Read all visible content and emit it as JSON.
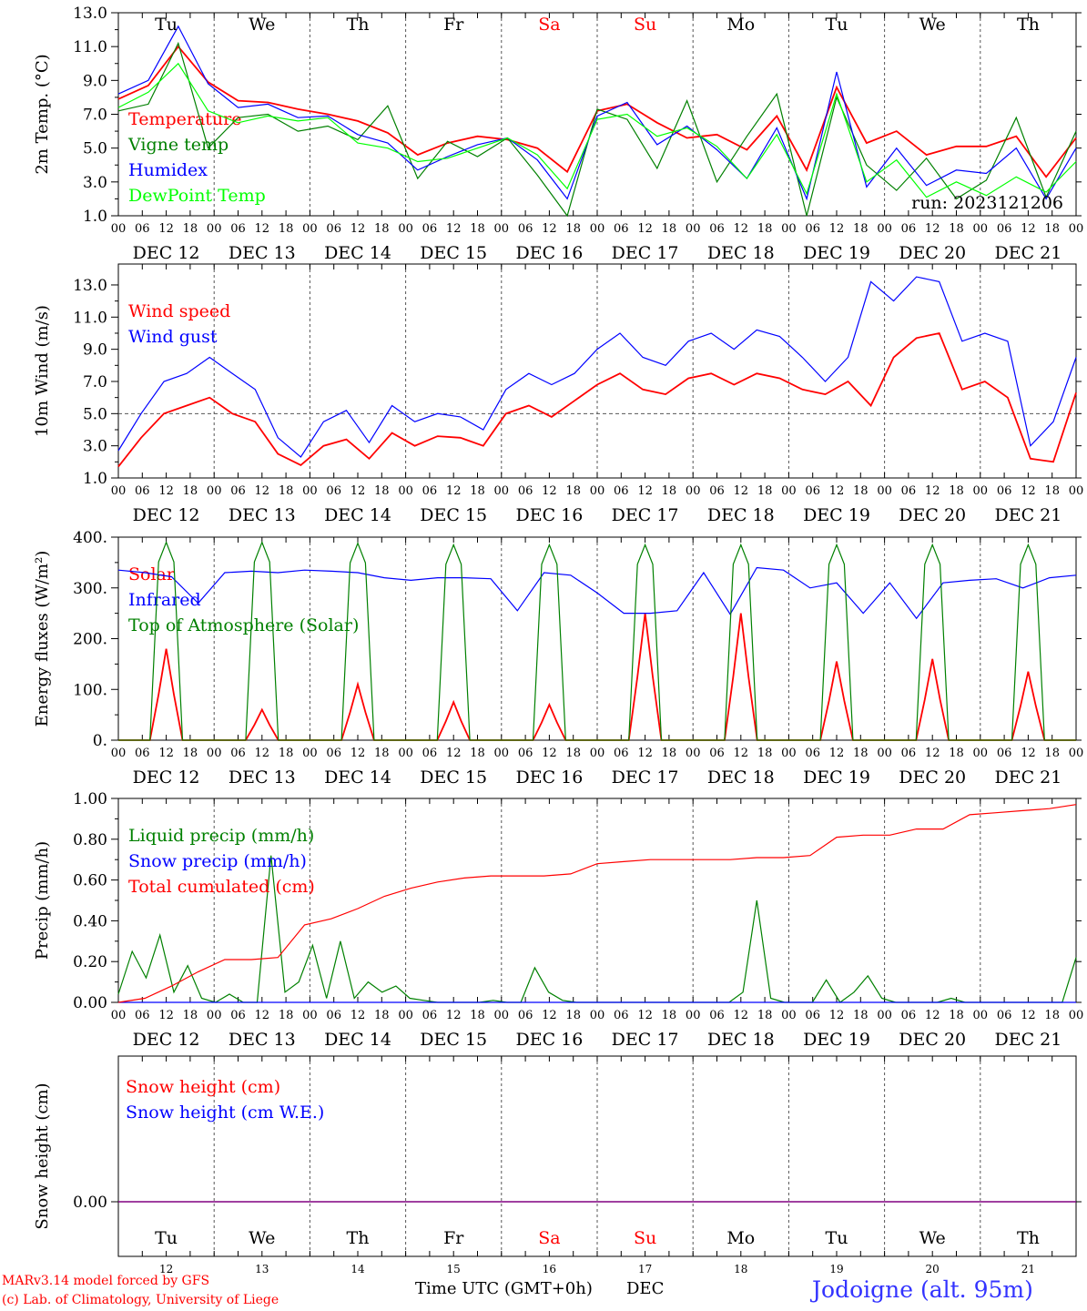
{
  "run_label": "run: 2023121206",
  "weekdays": [
    "Tu",
    "We",
    "Th",
    "Fr",
    "Sa",
    "Su",
    "Mo",
    "Tu",
    "We",
    "Th"
  ],
  "weekday_colors": [
    "#000000",
    "#000000",
    "#000000",
    "#000000",
    "#ff0000",
    "#ff0000",
    "#000000",
    "#000000",
    "#000000",
    "#000000"
  ],
  "hour_ticks": [
    "00",
    "06",
    "12",
    "18"
  ],
  "date_labels": [
    "DEC 12",
    "DEC 13",
    "DEC 14",
    "DEC 15",
    "DEC 16",
    "DEC 17",
    "DEC 18",
    "DEC 19",
    "DEC 20",
    "DEC 21"
  ],
  "day_numbers": [
    "12",
    "13",
    "14",
    "15",
    "16",
    "17",
    "18",
    "19",
    "20",
    "21"
  ],
  "footer": {
    "model_line": "MARv3.14 model forced by GFS",
    "credit_line": "(c) Lab. of Climatology, University of Liege",
    "time_axis": "Time UTC (GMT+0h)",
    "month": "DEC",
    "location": "Jodoigne (alt. 95m)"
  },
  "colors": {
    "red": "#ff0000",
    "blue": "#0000ff",
    "green": "#008000",
    "light_green": "#00ff00",
    "purple": "#800080",
    "grid": "#888888"
  },
  "chart_data": [
    {
      "type": "line",
      "ylabel": "2m Temp. (°C)",
      "ylim": [
        1.0,
        13.0
      ],
      "yticks": [
        "1.0",
        "3.0",
        "5.0",
        "7.0",
        "9.0",
        "11.0",
        "13.0"
      ],
      "x_unit": "hours since DEC 12 00 UTC, 6-hourly",
      "series": [
        {
          "name": "Temperature",
          "color": "#ff0000",
          "values": [
            7.9,
            8.7,
            11.0,
            8.9,
            7.8,
            7.7,
            7.3,
            7.0,
            6.6,
            5.9,
            4.6,
            5.3,
            5.7,
            5.5,
            5.0,
            3.6,
            7.2,
            7.6,
            6.5,
            5.6,
            5.8,
            4.9,
            6.9,
            3.7,
            8.6,
            5.3,
            6.0,
            4.6,
            5.1,
            5.1,
            5.7,
            3.3,
            5.6
          ]
        },
        {
          "name": "Vigne temp",
          "color": "#008000",
          "values": [
            7.2,
            7.6,
            11.2,
            5.0,
            6.8,
            7.0,
            6.0,
            6.3,
            5.5,
            7.5,
            3.2,
            5.4,
            4.5,
            5.6,
            3.4,
            0.2,
            7.3,
            6.7,
            3.8,
            7.8,
            3.0,
            5.7,
            8.2,
            0.6,
            8.0,
            4.0,
            2.5,
            4.4,
            2.0,
            3.1,
            6.8,
            2.1,
            6.0
          ]
        },
        {
          "name": "Humidex",
          "color": "#0000ff",
          "values": [
            8.2,
            9.0,
            12.2,
            8.8,
            7.4,
            7.6,
            6.8,
            6.9,
            5.8,
            5.3,
            3.7,
            4.5,
            5.2,
            5.6,
            4.3,
            2.0,
            6.9,
            7.7,
            5.2,
            6.3,
            4.9,
            3.2,
            6.2,
            2.0,
            9.5,
            2.7,
            5.0,
            2.8,
            3.7,
            3.5,
            5.0,
            2.0,
            5.0
          ]
        },
        {
          "name": "DewPoint Temp",
          "color": "#00ff00",
          "values": [
            7.4,
            8.3,
            10.0,
            7.2,
            6.5,
            6.9,
            6.6,
            6.8,
            5.3,
            5.0,
            4.2,
            4.4,
            5.0,
            5.6,
            4.6,
            2.6,
            6.7,
            7.0,
            5.7,
            6.2,
            5.1,
            3.2,
            5.8,
            2.3,
            8.2,
            3.0,
            4.3,
            2.1,
            3.0,
            2.2,
            3.3,
            2.4,
            4.2
          ]
        }
      ]
    },
    {
      "type": "line",
      "ylabel": "10m Wind (m/s)",
      "ylim": [
        1.0,
        14.3
      ],
      "yticks": [
        "1.0",
        "3.0",
        "5.0",
        "7.0",
        "9.0",
        "11.0",
        "13.0"
      ],
      "reference_line": 5.0,
      "series": [
        {
          "name": "Wind speed",
          "color": "#ff0000",
          "values": [
            1.7,
            3.5,
            5.0,
            5.5,
            6.0,
            5.0,
            4.5,
            2.5,
            1.8,
            3.0,
            3.4,
            2.2,
            3.8,
            3.0,
            3.6,
            3.5,
            3.0,
            5.0,
            5.5,
            4.8,
            5.8,
            6.8,
            7.5,
            6.5,
            6.2,
            7.2,
            7.5,
            6.8,
            7.5,
            7.2,
            6.5,
            6.2,
            7.0,
            5.5,
            8.5,
            9.7,
            10.0,
            6.5,
            7.0,
            6.0,
            2.2,
            2.0,
            6.3
          ]
        },
        {
          "name": "Wind gust",
          "color": "#0000ff",
          "values": [
            2.7,
            5.0,
            7.0,
            7.5,
            8.5,
            7.5,
            6.5,
            3.5,
            2.3,
            4.5,
            5.2,
            3.2,
            5.5,
            4.5,
            5.0,
            4.8,
            4.0,
            6.5,
            7.5,
            6.8,
            7.5,
            9.0,
            10.0,
            8.5,
            8.0,
            9.5,
            10.0,
            9.0,
            10.2,
            9.8,
            8.5,
            7.0,
            8.5,
            13.2,
            12.0,
            13.5,
            13.2,
            9.5,
            10.0,
            9.5,
            3.0,
            4.5,
            8.5
          ]
        }
      ]
    },
    {
      "type": "line",
      "ylabel": "Energy fluxes (W/m²)",
      "ylim": [
        0,
        400
      ],
      "yticks": [
        "0.",
        "100.",
        "200.",
        "300.",
        "400."
      ],
      "series": [
        {
          "name": "Solar",
          "color": "#ff0000",
          "day_peaks": [
            180,
            60,
            110,
            75,
            70,
            250,
            250,
            155,
            160,
            135
          ]
        },
        {
          "name": "Infrared",
          "color": "#0000ff",
          "values": [
            335,
            330,
            322,
            270,
            330,
            333,
            330,
            335,
            333,
            330,
            320,
            315,
            320,
            320,
            318,
            255,
            330,
            325,
            290,
            250,
            250,
            255,
            330,
            248,
            340,
            335,
            300,
            310,
            250,
            310,
            240,
            310,
            315,
            318,
            300,
            320,
            325
          ]
        },
        {
          "name": "Top of Atmosphere (Solar)",
          "color": "#008000",
          "day_peaks": [
            390,
            390,
            388,
            385,
            385,
            385,
            385,
            385,
            385,
            385
          ]
        }
      ]
    },
    {
      "type": "line",
      "ylabel": "Precip (mm/h)",
      "ylim": [
        0,
        1.0
      ],
      "yticks": [
        "0.00",
        "0.20",
        "0.40",
        "0.60",
        "0.80",
        "1.00"
      ],
      "series": [
        {
          "name": "Liquid precip (mm/h)",
          "color": "#008000",
          "values": [
            0.04,
            0.25,
            0.12,
            0.33,
            0.05,
            0.18,
            0.02,
            0.0,
            0.04,
            0.0,
            0.0,
            0.72,
            0.05,
            0.1,
            0.28,
            0.02,
            0.3,
            0.02,
            0.1,
            0.05,
            0.08,
            0.02,
            0.01,
            0.0,
            0.0,
            0.0,
            0.0,
            0.01,
            0.0,
            0.0,
            0.17,
            0.05,
            0.01,
            0.0,
            0.0,
            0.0,
            0.0,
            0.0,
            0.0,
            0.0,
            0.0,
            0.0,
            0.0,
            0.0,
            0.0,
            0.05,
            0.5,
            0.02,
            0.0,
            0.0,
            0.0,
            0.11,
            0.0,
            0.05,
            0.13,
            0.02,
            0.0,
            0.0,
            0.0,
            0.0,
            0.02,
            0.0,
            0.0,
            0.0,
            0.0,
            0.0,
            0.0,
            0.0,
            0.0,
            0.22
          ]
        },
        {
          "name": "Snow precip (mm/h)",
          "color": "#0000ff",
          "values": [
            0,
            0,
            0,
            0,
            0,
            0,
            0,
            0,
            0,
            0,
            0,
            0,
            0,
            0,
            0,
            0,
            0,
            0,
            0,
            0,
            0,
            0,
            0,
            0,
            0,
            0,
            0,
            0,
            0,
            0,
            0,
            0,
            0,
            0,
            0,
            0,
            0,
            0,
            0,
            0,
            0,
            0,
            0,
            0,
            0,
            0,
            0,
            0,
            0,
            0,
            0,
            0,
            0,
            0,
            0,
            0,
            0,
            0,
            0,
            0,
            0,
            0,
            0,
            0,
            0,
            0,
            0,
            0,
            0,
            0
          ]
        },
        {
          "name": "Total cumulated (cm)",
          "color": "#ff0000",
          "values": [
            0.0,
            0.02,
            0.08,
            0.15,
            0.21,
            0.21,
            0.22,
            0.38,
            0.41,
            0.46,
            0.52,
            0.56,
            0.59,
            0.61,
            0.62,
            0.62,
            0.62,
            0.63,
            0.68,
            0.69,
            0.7,
            0.7,
            0.7,
            0.7,
            0.71,
            0.71,
            0.72,
            0.81,
            0.82,
            0.82,
            0.85,
            0.85,
            0.92,
            0.93,
            0.94,
            0.95,
            0.97
          ]
        }
      ]
    },
    {
      "type": "line",
      "ylabel": "Snow height (cm)",
      "yticks": [
        "0.00"
      ],
      "series": [
        {
          "name": "Snow height (cm)",
          "color": "#ff0000",
          "values": [
            0,
            0
          ]
        },
        {
          "name": "Snow height (cm W.E.)",
          "color": "#0000ff",
          "values": [
            0,
            0
          ]
        }
      ]
    }
  ]
}
